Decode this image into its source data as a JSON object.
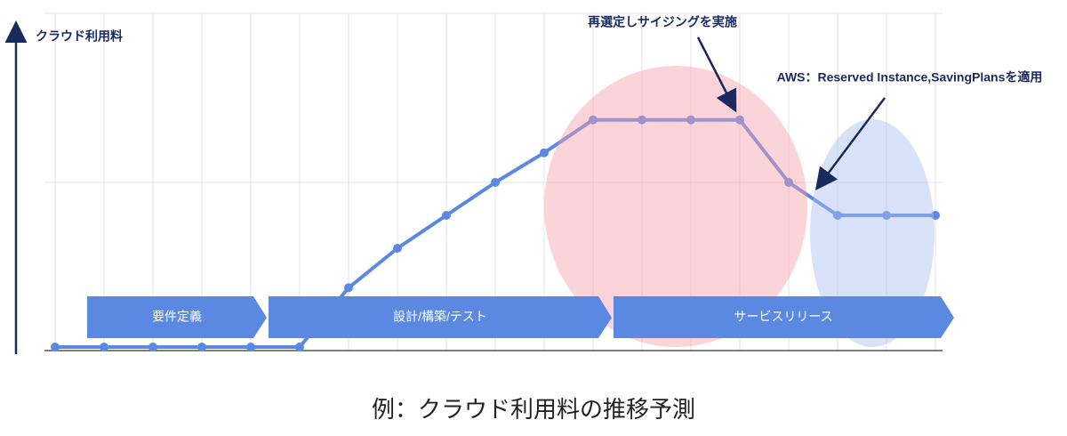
{
  "chart_data": {
    "type": "line",
    "title": "例：クラウド利用料の推移予測",
    "y_label": "クラウド利用料",
    "categories": [
      null,
      null,
      null,
      null,
      null,
      null,
      null,
      null,
      null,
      null,
      null,
      null,
      null,
      null,
      null,
      null,
      null,
      null,
      null
    ],
    "values": [
      0,
      0,
      0,
      0,
      0,
      0,
      1.8,
      3.0,
      4.0,
      5.0,
      5.9,
      6.9,
      6.9,
      6.9,
      6.9,
      5.0,
      4.0,
      4.0,
      4.0
    ],
    "color": "#5b88e0",
    "ylim": [
      0,
      10
    ],
    "phases": [
      "要件定義",
      "設計/構築/テスト",
      "サービスリリース"
    ],
    "annotations": [
      "再選定しサイジングを実施",
      "AWS：Reserved Instance,SavingPlansを適用"
    ]
  }
}
